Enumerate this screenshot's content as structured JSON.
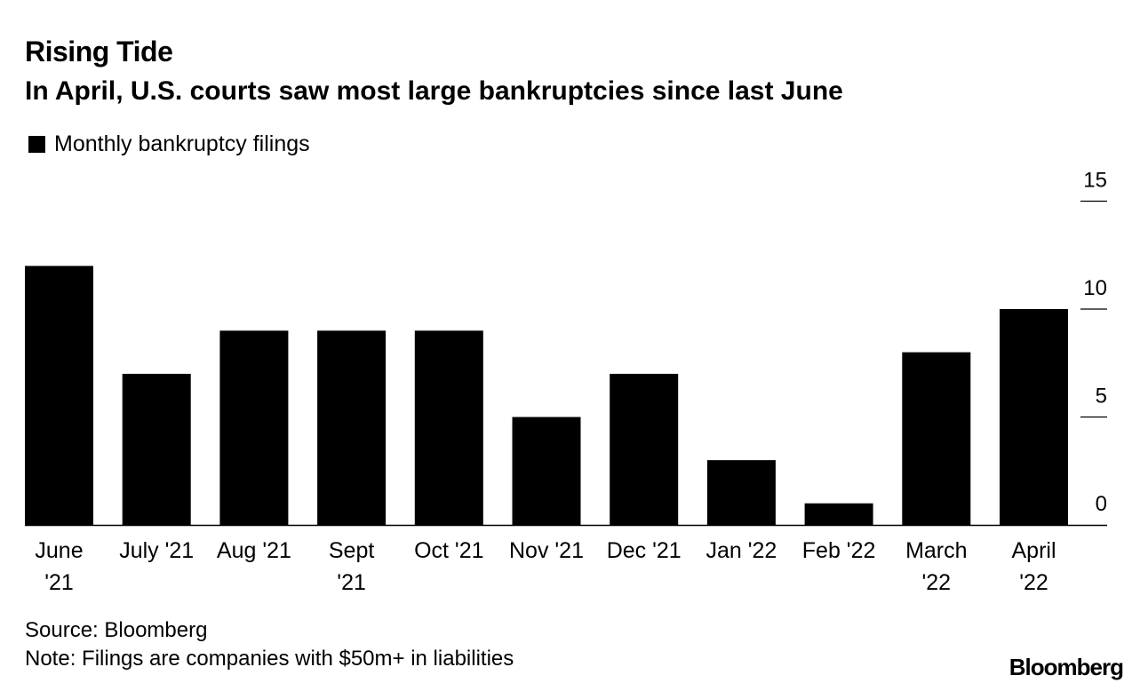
{
  "chart_data": {
    "type": "bar",
    "title": "Rising Tide",
    "subtitle": "In April, U.S. courts saw most large bankruptcies since last June",
    "legend": [
      {
        "label": "Monthly bankruptcy filings",
        "color": "#000000"
      }
    ],
    "legend_position": "top-left",
    "categories": [
      [
        "June",
        "'21"
      ],
      [
        "July '21"
      ],
      [
        "Aug '21"
      ],
      [
        "Sept",
        "'21"
      ],
      [
        "Oct '21"
      ],
      [
        "Nov '21"
      ],
      [
        "Dec '21"
      ],
      [
        "Jan '22"
      ],
      [
        "Feb '22"
      ],
      [
        "March",
        "'22"
      ],
      [
        "April",
        "'22"
      ]
    ],
    "series": [
      {
        "name": "Monthly bankruptcy filings",
        "values": [
          12,
          7,
          9,
          9,
          9,
          5,
          7,
          3,
          1,
          8,
          10
        ]
      }
    ],
    "ylim": [
      0,
      15
    ],
    "yticks": [
      0,
      5,
      10,
      15
    ],
    "y_axis_side": "right",
    "grid": false,
    "xlabel": "",
    "ylabel": "",
    "bar_color": "#000000"
  },
  "footer": {
    "source": "Source: Bloomberg",
    "note": "Note: Filings are companies with $50m+ in liabilities"
  },
  "brand": "Bloomberg"
}
